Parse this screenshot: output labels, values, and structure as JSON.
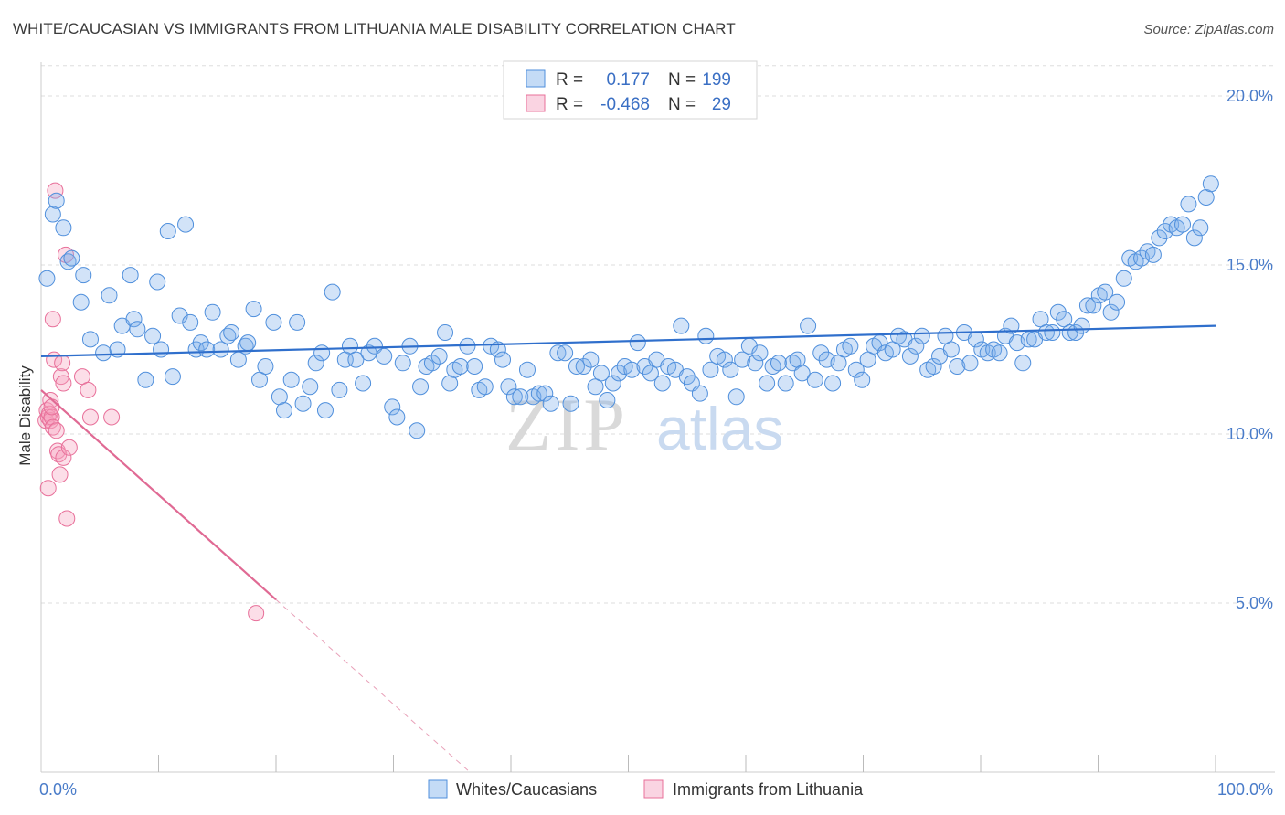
{
  "title": "WHITE/CAUCASIAN VS IMMIGRANTS FROM LITHUANIA MALE DISABILITY CORRELATION CHART",
  "source": "Source: ZipAtlas.com",
  "watermark": {
    "zip": "ZIP",
    "atlas": "atlas"
  },
  "colors": {
    "blue": "#4f8fdc",
    "blue_fill": "rgba(125,175,235,0.35)",
    "pink": "#e8709a",
    "pink_fill": "rgba(245,160,190,0.35)",
    "grid": "#dddddd",
    "tick_label": "#4a7cc9"
  },
  "legend": {
    "rows": [
      {
        "r_label": "R =",
        "r_value": "0.177",
        "n_label": "N =",
        "n_value": "199",
        "color": "blue"
      },
      {
        "r_label": "R =",
        "r_value": "-0.468",
        "n_label": "N =",
        "n_value": "29",
        "color": "pink"
      }
    ]
  },
  "chart_data": {
    "type": "scatter",
    "title": "WHITE/CAUCASIAN VS IMMIGRANTS FROM LITHUANIA MALE DISABILITY CORRELATION CHART",
    "xlabel": "",
    "ylabel": "Male Disability",
    "xlim": [
      0,
      100
    ],
    "ylim": [
      0,
      21
    ],
    "x_tick_labels": [
      "0.0%",
      "100.0%"
    ],
    "y_ticks": [
      {
        "value": 5,
        "label": "5.0%"
      },
      {
        "value": 10,
        "label": "10.0%"
      },
      {
        "value": 15,
        "label": "15.0%"
      },
      {
        "value": 20,
        "label": "20.0%"
      }
    ],
    "series": [
      {
        "name": "Whites/Caucasians",
        "color": "blue",
        "trendline": {
          "x": [
            0,
            100
          ],
          "y": [
            12.3,
            13.2
          ],
          "dashed_extension": false
        },
        "points": [
          [
            0.5,
            14.6
          ],
          [
            1,
            16.5
          ],
          [
            1.3,
            16.9
          ],
          [
            1.9,
            16.1
          ],
          [
            2.3,
            15.1
          ],
          [
            2.6,
            15.2
          ],
          [
            3.4,
            13.9
          ],
          [
            3.6,
            14.7
          ],
          [
            4.2,
            12.8
          ],
          [
            5.3,
            12.4
          ],
          [
            5.8,
            14.1
          ],
          [
            6.5,
            12.5
          ],
          [
            6.9,
            13.2
          ],
          [
            7.6,
            14.7
          ],
          [
            7.9,
            13.4
          ],
          [
            8.2,
            13.1
          ],
          [
            8.9,
            11.6
          ],
          [
            9.5,
            12.9
          ],
          [
            9.9,
            14.5
          ],
          [
            10.2,
            12.5
          ],
          [
            10.8,
            16.0
          ],
          [
            11.2,
            11.7
          ],
          [
            11.8,
            13.5
          ],
          [
            12.3,
            16.2
          ],
          [
            12.7,
            13.3
          ],
          [
            13.2,
            12.5
          ],
          [
            13.6,
            12.7
          ],
          [
            14.1,
            12.5
          ],
          [
            14.6,
            13.6
          ],
          [
            15.3,
            12.5
          ],
          [
            15.9,
            12.9
          ],
          [
            16.2,
            13.0
          ],
          [
            16.8,
            12.2
          ],
          [
            17.4,
            12.6
          ],
          [
            17.6,
            12.7
          ],
          [
            18.1,
            13.7
          ],
          [
            18.6,
            11.6
          ],
          [
            19.1,
            12.0
          ],
          [
            19.8,
            13.3
          ],
          [
            20.3,
            11.1
          ],
          [
            20.7,
            10.7
          ],
          [
            21.3,
            11.6
          ],
          [
            21.8,
            13.3
          ],
          [
            22.3,
            10.9
          ],
          [
            22.9,
            11.4
          ],
          [
            23.4,
            12.1
          ],
          [
            23.9,
            12.4
          ],
          [
            24.2,
            10.7
          ],
          [
            24.8,
            14.2
          ],
          [
            25.4,
            11.3
          ],
          [
            25.9,
            12.2
          ],
          [
            26.3,
            12.6
          ],
          [
            26.8,
            12.2
          ],
          [
            27.4,
            11.5
          ],
          [
            27.9,
            12.4
          ],
          [
            28.4,
            12.6
          ],
          [
            29.2,
            12.3
          ],
          [
            29.9,
            10.8
          ],
          [
            30.3,
            10.5
          ],
          [
            30.8,
            12.1
          ],
          [
            31.4,
            12.6
          ],
          [
            32.0,
            10.1
          ],
          [
            32.3,
            11.4
          ],
          [
            32.8,
            12.0
          ],
          [
            33.3,
            12.1
          ],
          [
            33.9,
            12.3
          ],
          [
            34.4,
            13.0
          ],
          [
            34.8,
            11.5
          ],
          [
            35.2,
            11.9
          ],
          [
            35.7,
            12.0
          ],
          [
            36.3,
            12.6
          ],
          [
            36.9,
            12.0
          ],
          [
            37.3,
            11.3
          ],
          [
            37.8,
            11.4
          ],
          [
            38.3,
            12.6
          ],
          [
            38.9,
            12.5
          ],
          [
            39.3,
            12.2
          ],
          [
            39.8,
            11.4
          ],
          [
            40.3,
            11.1
          ],
          [
            40.8,
            11.1
          ],
          [
            41.4,
            11.9
          ],
          [
            41.9,
            11.1
          ],
          [
            42.4,
            11.2
          ],
          [
            42.9,
            11.2
          ],
          [
            43.4,
            10.9
          ],
          [
            44.0,
            12.4
          ],
          [
            44.6,
            12.4
          ],
          [
            45.1,
            10.9
          ],
          [
            45.6,
            12.0
          ],
          [
            46.2,
            12.0
          ],
          [
            46.8,
            12.2
          ],
          [
            47.2,
            11.4
          ],
          [
            47.7,
            11.8
          ],
          [
            48.2,
            11.0
          ],
          [
            48.7,
            11.5
          ],
          [
            49.2,
            11.8
          ],
          [
            49.7,
            12.0
          ],
          [
            50.3,
            11.9
          ],
          [
            50.8,
            12.7
          ],
          [
            51.4,
            12.0
          ],
          [
            51.9,
            11.8
          ],
          [
            52.4,
            12.2
          ],
          [
            52.9,
            11.5
          ],
          [
            53.4,
            12.0
          ],
          [
            54.0,
            11.9
          ],
          [
            54.5,
            13.2
          ],
          [
            55.0,
            11.7
          ],
          [
            55.4,
            11.5
          ],
          [
            56.1,
            11.2
          ],
          [
            56.6,
            12.9
          ],
          [
            57.0,
            11.9
          ],
          [
            57.6,
            12.3
          ],
          [
            58.2,
            12.2
          ],
          [
            58.7,
            11.9
          ],
          [
            59.2,
            11.1
          ],
          [
            59.7,
            12.2
          ],
          [
            60.3,
            12.6
          ],
          [
            60.8,
            12.1
          ],
          [
            61.2,
            12.4
          ],
          [
            61.8,
            11.5
          ],
          [
            62.3,
            12.0
          ],
          [
            62.8,
            12.1
          ],
          [
            63.4,
            11.5
          ],
          [
            64.0,
            12.1
          ],
          [
            64.4,
            12.2
          ],
          [
            64.8,
            11.8
          ],
          [
            65.3,
            13.2
          ],
          [
            65.9,
            11.6
          ],
          [
            66.4,
            12.4
          ],
          [
            66.9,
            12.2
          ],
          [
            67.4,
            11.5
          ],
          [
            67.9,
            12.1
          ],
          [
            68.4,
            12.5
          ],
          [
            68.9,
            12.6
          ],
          [
            69.4,
            11.9
          ],
          [
            69.9,
            11.6
          ],
          [
            70.4,
            12.2
          ],
          [
            70.9,
            12.6
          ],
          [
            71.4,
            12.7
          ],
          [
            71.9,
            12.4
          ],
          [
            72.5,
            12.5
          ],
          [
            73.0,
            12.9
          ],
          [
            73.5,
            12.8
          ],
          [
            74.0,
            12.3
          ],
          [
            74.5,
            12.6
          ],
          [
            75.0,
            12.9
          ],
          [
            75.5,
            11.9
          ],
          [
            76.0,
            12.0
          ],
          [
            76.5,
            12.3
          ],
          [
            77.0,
            12.9
          ],
          [
            77.5,
            12.5
          ],
          [
            78.0,
            12.0
          ],
          [
            78.6,
            13.0
          ],
          [
            79.1,
            12.1
          ],
          [
            79.6,
            12.8
          ],
          [
            80.1,
            12.5
          ],
          [
            80.6,
            12.4
          ],
          [
            81.1,
            12.5
          ],
          [
            81.6,
            12.4
          ],
          [
            82.1,
            12.9
          ],
          [
            82.6,
            13.2
          ],
          [
            83.1,
            12.7
          ],
          [
            83.6,
            12.1
          ],
          [
            84.1,
            12.8
          ],
          [
            84.6,
            12.8
          ],
          [
            85.1,
            13.4
          ],
          [
            85.6,
            13.0
          ],
          [
            86.1,
            13.0
          ],
          [
            86.6,
            13.6
          ],
          [
            87.1,
            13.4
          ],
          [
            87.6,
            13.0
          ],
          [
            88.1,
            13.0
          ],
          [
            88.6,
            13.2
          ],
          [
            89.1,
            13.8
          ],
          [
            89.6,
            13.8
          ],
          [
            90.1,
            14.1
          ],
          [
            90.6,
            14.2
          ],
          [
            91.1,
            13.6
          ],
          [
            91.6,
            13.9
          ],
          [
            92.2,
            14.6
          ],
          [
            92.7,
            15.2
          ],
          [
            93.2,
            15.1
          ],
          [
            93.7,
            15.2
          ],
          [
            94.2,
            15.4
          ],
          [
            94.7,
            15.3
          ],
          [
            95.2,
            15.8
          ],
          [
            95.7,
            16.0
          ],
          [
            96.2,
            16.2
          ],
          [
            96.7,
            16.1
          ],
          [
            97.2,
            16.2
          ],
          [
            97.7,
            16.8
          ],
          [
            98.2,
            15.8
          ],
          [
            98.7,
            16.1
          ],
          [
            99.2,
            17.0
          ],
          [
            99.6,
            17.4
          ]
        ]
      },
      {
        "name": "Immigrants from Lithuania",
        "color": "pink",
        "trendline": {
          "x": [
            0,
            20
          ],
          "y": [
            11.3,
            5.1
          ],
          "dashed_extension": true,
          "dashed_to": [
            36.5,
            0
          ]
        },
        "points": [
          [
            0.4,
            10.4
          ],
          [
            0.5,
            10.7
          ],
          [
            0.6,
            10.5
          ],
          [
            0.6,
            8.4
          ],
          [
            0.7,
            10.6
          ],
          [
            0.8,
            10.4
          ],
          [
            0.8,
            11.0
          ],
          [
            0.9,
            10.5
          ],
          [
            1.0,
            10.2
          ],
          [
            1.0,
            13.4
          ],
          [
            1.1,
            12.2
          ],
          [
            1.2,
            17.2
          ],
          [
            1.3,
            10.1
          ],
          [
            1.4,
            9.5
          ],
          [
            1.5,
            9.4
          ],
          [
            1.6,
            8.8
          ],
          [
            1.7,
            11.7
          ],
          [
            1.8,
            12.1
          ],
          [
            1.9,
            9.3
          ],
          [
            1.9,
            11.5
          ],
          [
            2.1,
            15.3
          ],
          [
            2.2,
            7.5
          ],
          [
            2.4,
            9.6
          ],
          [
            3.5,
            11.7
          ],
          [
            4.0,
            11.3
          ],
          [
            4.2,
            10.5
          ],
          [
            6.0,
            10.5
          ],
          [
            18.3,
            4.7
          ],
          [
            0.9,
            10.8
          ]
        ]
      }
    ],
    "legend_placement": "top-center"
  },
  "bottom_legend": [
    {
      "label": "Whites/Caucasians",
      "color": "blue"
    },
    {
      "label": "Immigrants from Lithuania",
      "color": "pink"
    }
  ]
}
